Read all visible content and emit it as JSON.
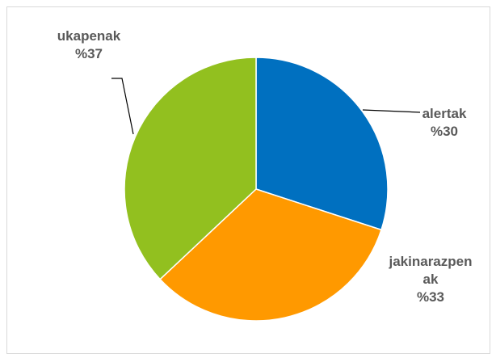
{
  "chart_data": {
    "type": "pie",
    "title": "",
    "slices": [
      {
        "name": "alertak",
        "label_lines": [
          "alertak",
          "%30"
        ],
        "value": 30,
        "color": "#0070C0"
      },
      {
        "name": "jakinarazpenak",
        "label_lines": [
          "jakinarazpen",
          "ak",
          "%33"
        ],
        "value": 33,
        "color": "#FF9900"
      },
      {
        "name": "ukapenak",
        "label_lines": [
          "ukapenak",
          "%37"
        ],
        "value": 37,
        "color": "#92C01F"
      }
    ],
    "legend": "none",
    "start_angle": "12 o'clock, clockwise"
  }
}
